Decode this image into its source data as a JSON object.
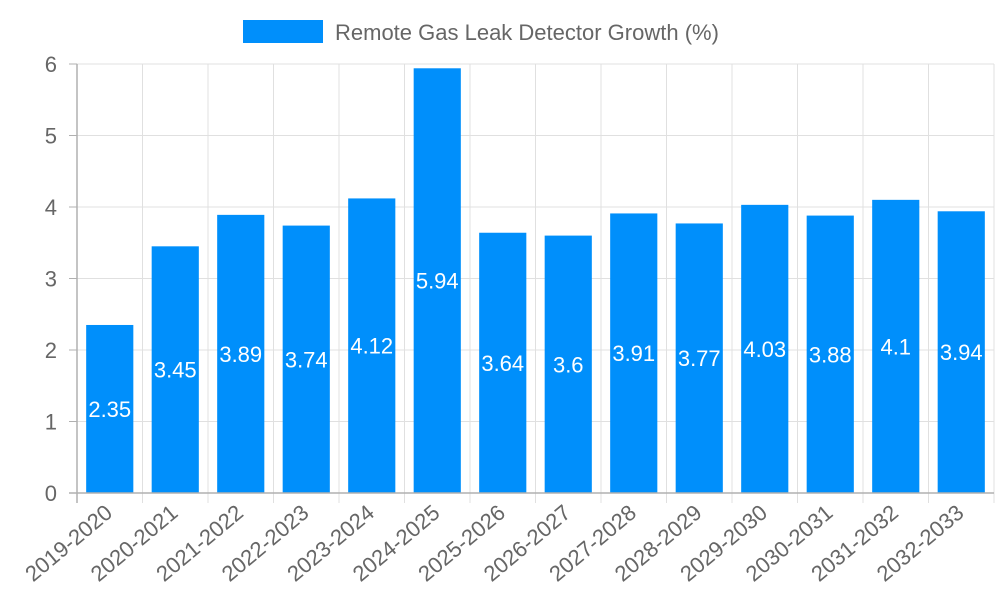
{
  "chart_data": {
    "type": "bar",
    "title": "",
    "legend": [
      {
        "label": "Remote Gas Leak Detector Growth (%)",
        "color": "#008ffb"
      }
    ],
    "legend_position": "top",
    "xlabel": "",
    "ylabel": "",
    "ylim": [
      0,
      6
    ],
    "yticks": [
      0,
      1,
      2,
      3,
      4,
      5,
      6
    ],
    "grid": true,
    "categories": [
      "2019-2020",
      "2020-2021",
      "2021-2022",
      "2022-2023",
      "2023-2024",
      "2024-2025",
      "2025-2026",
      "2026-2027",
      "2027-2028",
      "2028-2029",
      "2029-2030",
      "2030-2031",
      "2031-2032",
      "2032-2033"
    ],
    "series": [
      {
        "name": "Remote Gas Leak Detector Growth (%)",
        "color": "#008ffb",
        "values": [
          2.35,
          3.45,
          3.89,
          3.74,
          4.12,
          5.94,
          3.64,
          3.6,
          3.91,
          3.77,
          4.03,
          3.88,
          4.1,
          3.94
        ]
      }
    ]
  }
}
